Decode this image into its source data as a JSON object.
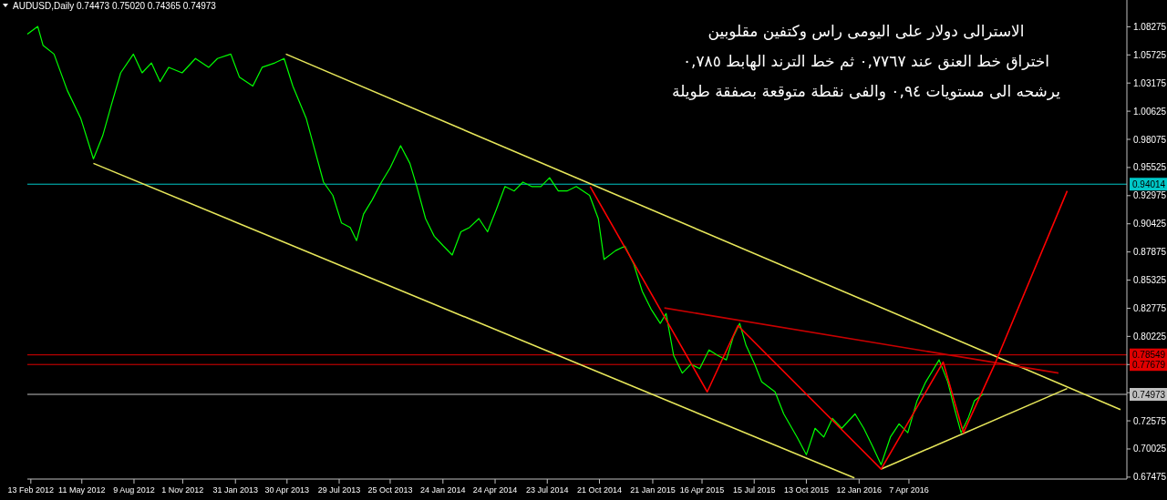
{
  "chart_data": {
    "type": "line",
    "title": "AUDUSD,Daily  0.74473 0.75020 0.74365 0.74973",
    "annotations": [
      "الاسترالى دولار على اليومى راس وكتفين مقلوبين",
      "اختراق خط العنق عند ٠,٧٧٦٧ ثم خط الترند الهابط ٠,٧٨٥",
      "يرشحه الى مستويات ٠,٩٤ والفى نقطة متوقعة بصفقة طويلة"
    ],
    "xlim": [
      "2012-02-07",
      "2017-04-18"
    ],
    "xticks": [
      {
        "value": "2012-02-13",
        "label": "13 Feb 2012"
      },
      {
        "value": "2012-05-11",
        "label": "11 May 2012"
      },
      {
        "value": "2012-08-09",
        "label": "9 Aug 2012"
      },
      {
        "value": "2012-11-01",
        "label": "1 Nov 2012"
      },
      {
        "value": "2013-01-31",
        "label": "31 Jan 2013"
      },
      {
        "value": "2013-04-30",
        "label": "30 Apr 2013"
      },
      {
        "value": "2013-07-29",
        "label": "29 Jul 2013"
      },
      {
        "value": "2013-10-25",
        "label": "25 Oct 2013"
      },
      {
        "value": "2014-01-24",
        "label": "24 Jan 2014"
      },
      {
        "value": "2014-04-24",
        "label": "24 Apr 2014"
      },
      {
        "value": "2014-07-23",
        "label": "23 Jul 2014"
      },
      {
        "value": "2014-10-21",
        "label": "21 Oct 2014"
      },
      {
        "value": "2015-01-21",
        "label": "21 Jan 2015"
      },
      {
        "value": "2015-04-16",
        "label": "16 Apr 2015"
      },
      {
        "value": "2015-07-15",
        "label": "15 Jul 2015"
      },
      {
        "value": "2015-10-13",
        "label": "13 Oct 2015"
      },
      {
        "value": "2016-01-12",
        "label": "12 Jan 2016"
      },
      {
        "value": "2016-04-07",
        "label": "7 Apr 2016"
      }
    ],
    "ylim": [
      0.673,
      1.107
    ],
    "yticks": [
      1.08275,
      1.05725,
      1.03175,
      1.00625,
      0.98075,
      0.95525,
      0.92975,
      0.90425,
      0.87875,
      0.85325,
      0.82775,
      0.80225,
      {
        "value": 0.77675,
        "label": null
      },
      {
        "value": 0.75125,
        "label": null
      },
      0.72575,
      0.70025,
      0.67475
    ],
    "ref_lines": [
      {
        "axis": "y",
        "value": 0.94014,
        "label": "0.94014",
        "color": "#00c8c8"
      },
      {
        "axis": "y",
        "value": 0.78549,
        "label": "0.78549",
        "color": "#e00000"
      },
      {
        "axis": "y",
        "value": 0.77679,
        "label": "0.77679",
        "color": "#e00000"
      },
      {
        "axis": "y",
        "value": 0.74973,
        "label": "0.74973",
        "color": "#c0c0c0"
      }
    ],
    "grid": false,
    "series": [
      {
        "color": "#00ff00",
        "x": [
          "2012-02-07",
          "2012-02-25",
          "2012-03-05",
          "2012-03-24",
          "2012-04-16",
          "2012-05-09",
          "2012-05-31",
          "2012-06-16",
          "2012-07-01",
          "2012-07-17",
          "2012-08-08",
          "2012-08-23",
          "2012-09-08",
          "2012-09-23",
          "2012-10-08",
          "2012-10-31",
          "2012-11-23",
          "2012-12-16",
          "2012-12-31",
          "2013-01-23",
          "2013-02-07",
          "2013-03-02",
          "2013-03-18",
          "2013-04-09",
          "2013-04-25",
          "2013-05-10",
          "2013-06-02",
          "2013-06-17",
          "2013-07-02",
          "2013-07-18",
          "2013-08-02",
          "2013-08-17",
          "2013-08-28",
          "2013-09-09",
          "2013-09-24",
          "2013-10-10",
          "2013-10-25",
          "2013-11-12",
          "2013-11-28",
          "2013-12-10",
          "2013-12-25",
          "2014-01-09",
          "2014-01-25",
          "2014-02-09",
          "2014-02-24",
          "2014-03-11",
          "2014-03-27",
          "2014-04-11",
          "2014-04-26",
          "2014-05-11",
          "2014-05-27",
          "2014-06-11",
          "2014-06-26",
          "2014-07-12",
          "2014-07-27",
          "2014-08-11",
          "2014-08-26",
          "2014-09-11",
          "2014-10-04",
          "2014-10-19",
          "2014-10-29",
          "2014-11-18",
          "2014-12-04",
          "2014-12-19",
          "2015-01-03",
          "2015-01-18",
          "2015-02-03",
          "2015-02-13",
          "2015-02-26",
          "2015-03-13",
          "2015-03-28",
          "2015-04-12",
          "2015-04-28",
          "2015-05-13",
          "2015-05-28",
          "2015-06-09",
          "2015-06-20",
          "2015-07-01",
          "2015-07-16",
          "2015-07-28",
          "2015-08-20",
          "2015-09-04",
          "2015-09-27",
          "2015-10-13",
          "2015-10-28",
          "2015-11-12",
          "2015-11-27",
          "2015-12-13",
          "2016-01-05",
          "2016-01-20",
          "2016-02-04",
          "2016-02-19",
          "2016-03-06",
          "2016-03-21",
          "2016-04-05",
          "2016-04-21",
          "2016-05-06",
          "2016-05-29",
          "2016-06-13",
          "2016-06-25",
          "2016-07-06",
          "2016-07-18",
          "2016-07-29",
          "2016-08-13"
        ],
        "values": [
          1.076,
          1.083,
          1.066,
          1.058,
          1.025,
          1.0,
          0.963,
          0.984,
          1.012,
          1.041,
          1.058,
          1.041,
          1.05,
          1.033,
          1.046,
          1.041,
          1.054,
          1.046,
          1.054,
          1.058,
          1.037,
          1.029,
          1.046,
          1.05,
          1.054,
          1.029,
          1.0,
          0.971,
          0.942,
          0.93,
          0.905,
          0.901,
          0.889,
          0.913,
          0.926,
          0.942,
          0.955,
          0.975,
          0.959,
          0.938,
          0.909,
          0.893,
          0.884,
          0.876,
          0.897,
          0.901,
          0.909,
          0.897,
          0.917,
          0.938,
          0.934,
          0.942,
          0.938,
          0.938,
          0.946,
          0.934,
          0.934,
          0.938,
          0.93,
          0.909,
          0.872,
          0.88,
          0.884,
          0.868,
          0.843,
          0.827,
          0.814,
          0.823,
          0.785,
          0.769,
          0.777,
          0.773,
          0.79,
          0.785,
          0.781,
          0.802,
          0.814,
          0.794,
          0.777,
          0.761,
          0.752,
          0.732,
          0.711,
          0.695,
          0.719,
          0.711,
          0.728,
          0.719,
          0.732,
          0.719,
          0.703,
          0.686,
          0.711,
          0.723,
          0.715,
          0.744,
          0.761,
          0.781,
          0.761,
          0.736,
          0.715,
          0.728,
          0.744,
          0.75
        ]
      },
      {
        "color": "#e6e65a",
        "x": [
          "2013-04-28",
          "2017-04-07"
        ],
        "values": [
          1.058,
          0.736
        ]
      },
      {
        "color": "#e6e65a",
        "x": [
          "2012-05-31",
          "2016-01-04"
        ],
        "values": [
          0.959,
          0.674
        ]
      },
      {
        "color": "#e6e65a",
        "x": [
          "2016-02-19",
          "2017-01-05"
        ],
        "values": [
          0.682,
          0.755
        ]
      },
      {
        "color": "#c80000",
        "x": [
          "2015-02-10",
          "2016-12-21"
        ],
        "values": [
          0.828,
          0.769
        ]
      },
      {
        "color": "#ff0000",
        "x": [
          "2014-10-05",
          "2015-04-25",
          "2015-06-17",
          "2016-02-19",
          "2016-06-05",
          "2016-07-10",
          "2016-09-02",
          "2017-01-05"
        ],
        "values": [
          0.938,
          0.752,
          0.812,
          0.682,
          0.779,
          0.715,
          0.777,
          0.934
        ]
      }
    ]
  }
}
